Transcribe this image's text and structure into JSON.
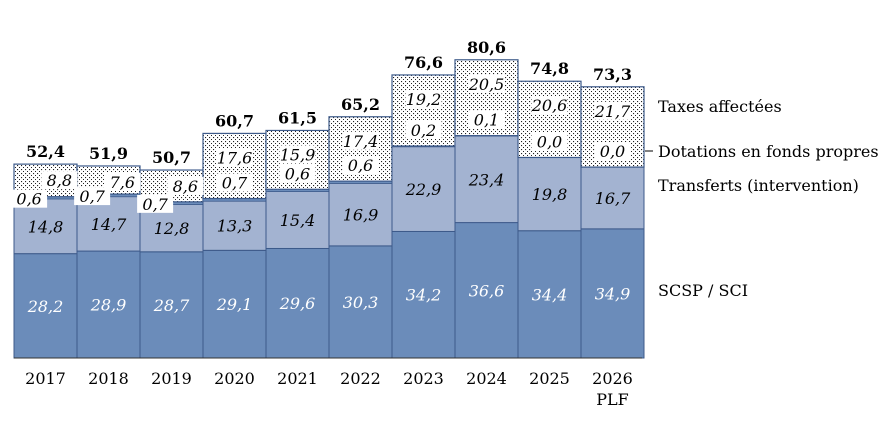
{
  "chart_data": {
    "type": "bar",
    "stacked": true,
    "categories": [
      "2017",
      "2018",
      "2019",
      "2020",
      "2021",
      "2022",
      "2023",
      "2024",
      "2025",
      "2026\nPLF"
    ],
    "series": [
      {
        "name": "SCSP / SCI",
        "values": [
          28.2,
          28.9,
          28.7,
          29.1,
          29.6,
          30.3,
          34.2,
          36.6,
          34.4,
          34.9
        ],
        "labels": [
          "28,2",
          "28,9",
          "28,7",
          "29,1",
          "29,6",
          "30,3",
          "34,2",
          "36,6",
          "34,4",
          "34,9"
        ],
        "color": "#6b8cba"
      },
      {
        "name": "Transferts (intervention)",
        "values": [
          14.8,
          14.7,
          12.8,
          13.3,
          15.4,
          16.9,
          22.9,
          23.4,
          19.8,
          16.7
        ],
        "labels": [
          "14,8",
          "14,7",
          "12,8",
          "13,3",
          "15,4",
          "16,9",
          "22,9",
          "23,4",
          "19,8",
          "16,7"
        ],
        "color": "#a3b3d1"
      },
      {
        "name": "Dotations en fonds propres",
        "values": [
          0.6,
          0.7,
          0.7,
          0.7,
          0.6,
          0.6,
          0.2,
          0.1,
          0.0,
          0.0
        ],
        "labels": [
          "0,6",
          "0,7",
          "0,7",
          "0,7",
          "0,6",
          "0,6",
          "0,2",
          "0,1",
          "0,0",
          "0,0"
        ],
        "color": "#6b8cba"
      },
      {
        "name": "Taxes affectées",
        "values": [
          8.8,
          7.6,
          8.6,
          17.6,
          15.9,
          17.4,
          19.2,
          20.5,
          20.6,
          21.7
        ],
        "labels": [
          "8,8",
          "7,6",
          "8,6",
          "17,6",
          "15,9",
          "17,4",
          "19,2",
          "20,5",
          "20,6",
          "21,7"
        ],
        "pattern": "dots"
      }
    ],
    "totals": [
      52.4,
      51.9,
      50.7,
      60.7,
      61.5,
      65.2,
      76.6,
      80.6,
      74.8,
      73.3
    ],
    "total_labels": [
      "52,4",
      "51,9",
      "50,7",
      "60,7",
      "61,5",
      "65,2",
      "76,6",
      "80,6",
      "74,8",
      "73,3"
    ],
    "ylim": [
      0,
      82
    ],
    "grid": false,
    "legend": "right"
  },
  "colors": {
    "base": "#6b8cba",
    "transfers": "#a3b3d1",
    "outline": "#3d5a8a",
    "axis": "#333333"
  }
}
